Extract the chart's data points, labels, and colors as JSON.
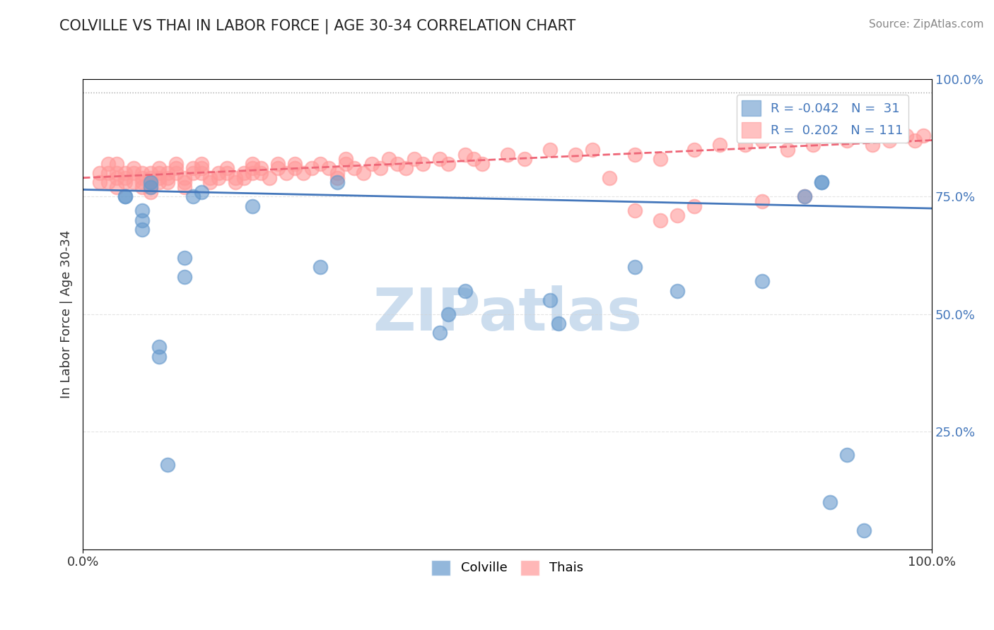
{
  "title": "COLVILLE VS THAI IN LABOR FORCE | AGE 30-34 CORRELATION CHART",
  "source_text": "Source: ZipAtlas.com",
  "xlabel": "",
  "ylabel": "In Labor Force | Age 30-34",
  "legend_labels": [
    "Colville",
    "Thais"
  ],
  "colville_R": -0.042,
  "colville_N": 31,
  "thai_R": 0.202,
  "thai_N": 111,
  "xlim": [
    0.0,
    1.0
  ],
  "ylim": [
    0.0,
    1.0
  ],
  "xtick_labels": [
    "0.0%",
    "100.0%"
  ],
  "ytick_positions": [
    0.0,
    0.25,
    0.5,
    0.75,
    1.0
  ],
  "ytick_labels": [
    "",
    "25.0%",
    "50.0%",
    "75.0%",
    "100.0%"
  ],
  "blue_color": "#6699CC",
  "pink_color": "#FF9999",
  "blue_line_color": "#4477BB",
  "pink_line_color": "#EE6677",
  "watermark_color": "#CCDDEE",
  "background_color": "#FFFFFF",
  "colville_x": [
    0.05,
    0.05,
    0.07,
    0.07,
    0.07,
    0.08,
    0.08,
    0.09,
    0.09,
    0.1,
    0.12,
    0.12,
    0.13,
    0.14,
    0.2,
    0.28,
    0.3,
    0.42,
    0.43,
    0.45,
    0.55,
    0.56,
    0.65,
    0.7,
    0.8,
    0.85,
    0.87,
    0.87,
    0.88,
    0.9,
    0.92
  ],
  "colville_y": [
    0.75,
    0.75,
    0.72,
    0.7,
    0.68,
    0.78,
    0.77,
    0.43,
    0.41,
    0.18,
    0.62,
    0.58,
    0.75,
    0.76,
    0.73,
    0.6,
    0.78,
    0.46,
    0.5,
    0.55,
    0.53,
    0.48,
    0.6,
    0.55,
    0.57,
    0.75,
    0.78,
    0.78,
    0.1,
    0.2,
    0.04
  ],
  "thai_x": [
    0.02,
    0.02,
    0.03,
    0.03,
    0.03,
    0.04,
    0.04,
    0.04,
    0.04,
    0.05,
    0.05,
    0.05,
    0.06,
    0.06,
    0.06,
    0.07,
    0.07,
    0.07,
    0.07,
    0.08,
    0.08,
    0.08,
    0.08,
    0.08,
    0.09,
    0.09,
    0.09,
    0.09,
    0.1,
    0.1,
    0.1,
    0.11,
    0.11,
    0.11,
    0.12,
    0.12,
    0.12,
    0.13,
    0.13,
    0.14,
    0.14,
    0.14,
    0.15,
    0.15,
    0.16,
    0.16,
    0.17,
    0.17,
    0.18,
    0.18,
    0.19,
    0.19,
    0.2,
    0.2,
    0.2,
    0.21,
    0.21,
    0.22,
    0.23,
    0.23,
    0.24,
    0.25,
    0.25,
    0.26,
    0.27,
    0.28,
    0.29,
    0.3,
    0.3,
    0.31,
    0.31,
    0.32,
    0.33,
    0.34,
    0.35,
    0.36,
    0.37,
    0.38,
    0.39,
    0.4,
    0.42,
    0.43,
    0.45,
    0.46,
    0.47,
    0.5,
    0.52,
    0.55,
    0.58,
    0.6,
    0.62,
    0.65,
    0.68,
    0.72,
    0.75,
    0.78,
    0.8,
    0.83,
    0.86,
    0.9,
    0.93,
    0.95,
    0.97,
    0.98,
    0.99,
    0.65,
    0.68,
    0.7,
    0.72,
    0.8,
    0.85
  ],
  "thai_y": [
    0.8,
    0.78,
    0.82,
    0.8,
    0.78,
    0.82,
    0.8,
    0.79,
    0.77,
    0.8,
    0.78,
    0.79,
    0.81,
    0.8,
    0.78,
    0.8,
    0.79,
    0.78,
    0.77,
    0.8,
    0.79,
    0.78,
    0.77,
    0.76,
    0.81,
    0.8,
    0.79,
    0.78,
    0.8,
    0.79,
    0.78,
    0.82,
    0.81,
    0.8,
    0.79,
    0.78,
    0.77,
    0.81,
    0.8,
    0.82,
    0.81,
    0.8,
    0.79,
    0.78,
    0.8,
    0.79,
    0.81,
    0.8,
    0.79,
    0.78,
    0.8,
    0.79,
    0.82,
    0.81,
    0.8,
    0.81,
    0.8,
    0.79,
    0.82,
    0.81,
    0.8,
    0.82,
    0.81,
    0.8,
    0.81,
    0.82,
    0.81,
    0.8,
    0.79,
    0.83,
    0.82,
    0.81,
    0.8,
    0.82,
    0.81,
    0.83,
    0.82,
    0.81,
    0.83,
    0.82,
    0.83,
    0.82,
    0.84,
    0.83,
    0.82,
    0.84,
    0.83,
    0.85,
    0.84,
    0.85,
    0.79,
    0.84,
    0.83,
    0.85,
    0.86,
    0.86,
    0.87,
    0.85,
    0.86,
    0.87,
    0.86,
    0.87,
    0.88,
    0.87,
    0.88,
    0.72,
    0.7,
    0.71,
    0.73,
    0.74,
    0.75
  ]
}
